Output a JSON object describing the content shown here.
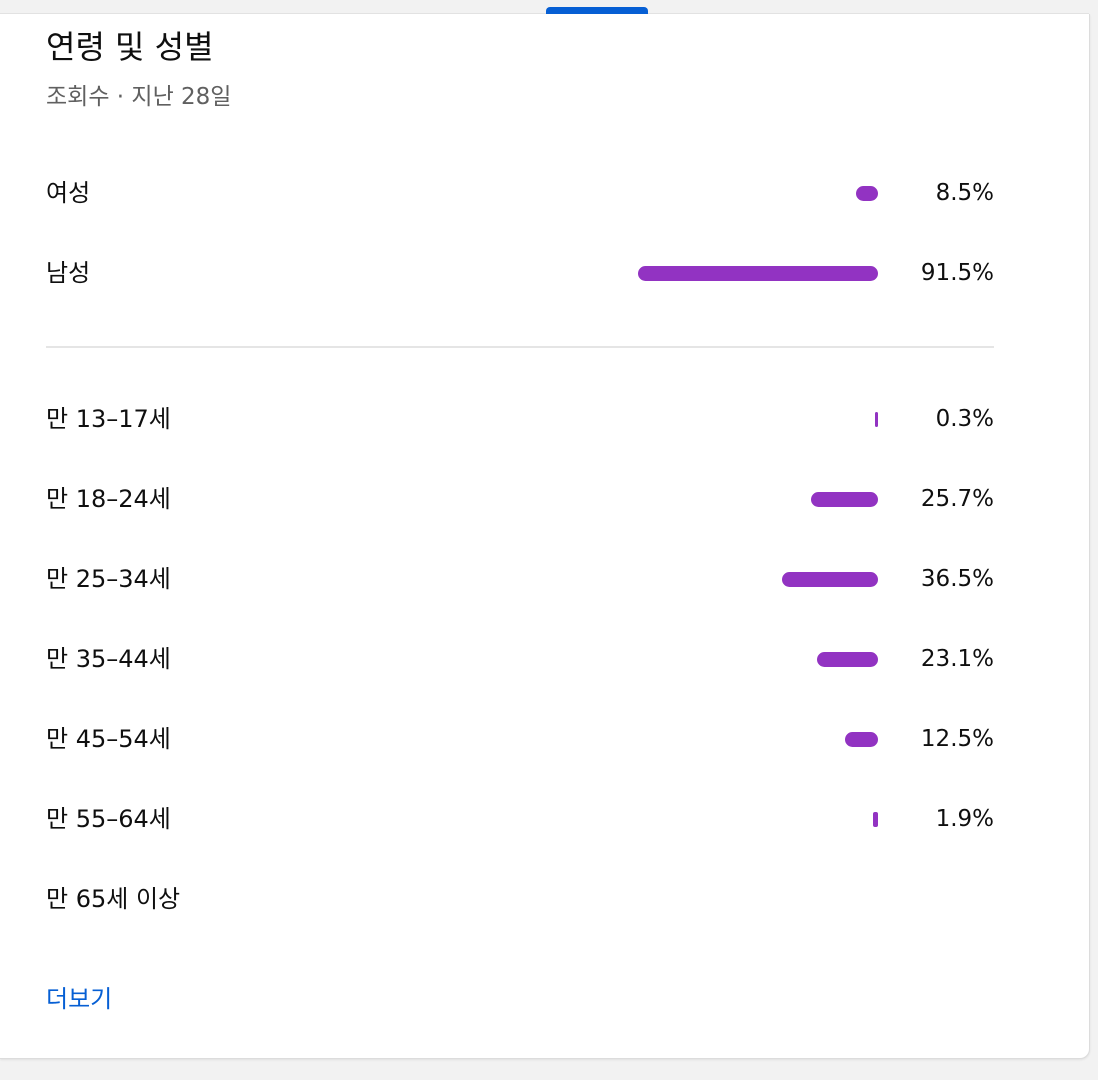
{
  "header": {
    "title": "연령 및 성별",
    "subtitle": "조회수 · 지난 28일"
  },
  "gender": [
    {
      "label": "여성",
      "percent": 8.5,
      "value": "8.5%"
    },
    {
      "label": "남성",
      "percent": 91.5,
      "value": "91.5%"
    }
  ],
  "age": [
    {
      "label": "만 13–17세",
      "percent": 0.3,
      "value": "0.3%"
    },
    {
      "label": "만 18–24세",
      "percent": 25.7,
      "value": "25.7%"
    },
    {
      "label": "만 25–34세",
      "percent": 36.5,
      "value": "36.5%"
    },
    {
      "label": "만 35–44세",
      "percent": 23.1,
      "value": "23.1%"
    },
    {
      "label": "만 45–54세",
      "percent": 12.5,
      "value": "12.5%"
    },
    {
      "label": "만 55–64세",
      "percent": 1.9,
      "value": "1.9%"
    },
    {
      "label": "만 65세 이상",
      "percent": null,
      "value": ""
    }
  ],
  "footer": {
    "more_label": "더보기"
  },
  "colors": {
    "bar": "#9233c2",
    "link": "#065fd4",
    "tab_indicator": "#065fd4"
  }
}
